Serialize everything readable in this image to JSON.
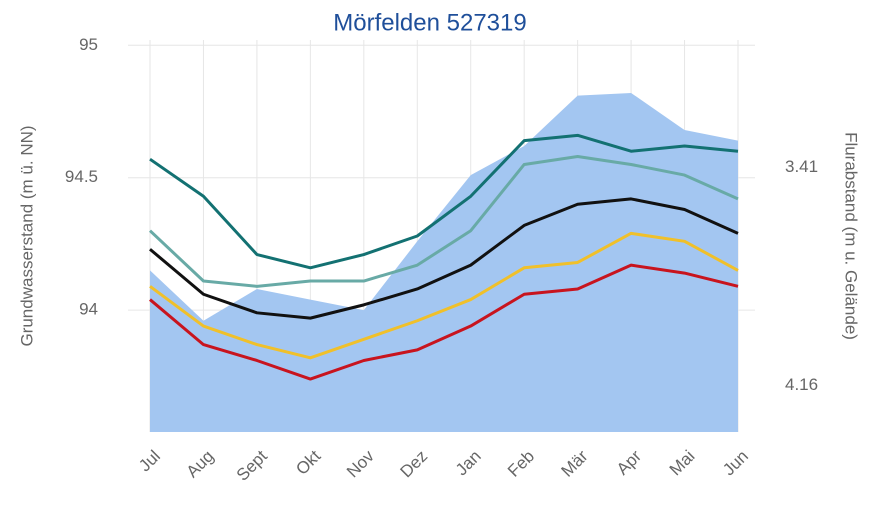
{
  "chart_data": {
    "type": "line",
    "title": "Mörfelden 527319",
    "y_label": "Grundwasserstand (m ü. NN)",
    "y2_label": "Flurabstand (m u. Gelände)",
    "categories": [
      "Jul",
      "Aug",
      "Sept",
      "Okt",
      "Nov",
      "Dez",
      "Jan",
      "Feb",
      "Mär",
      "Apr",
      "Mai",
      "Jun"
    ],
    "ylim": [
      93.54,
      95.02
    ],
    "yticks": [
      94,
      94.5,
      95
    ],
    "y2lim": [
      4.32,
      2.97
    ],
    "y2ticks": [
      3.41,
      4.16
    ],
    "grid": true,
    "series": [
      {
        "kind": "area",
        "color": "#a3c6f1",
        "values": [
          94.15,
          93.96,
          94.08,
          94.04,
          94.0,
          94.26,
          94.51,
          94.62,
          94.81,
          94.82,
          94.68,
          94.64
        ]
      },
      {
        "color": "#137172",
        "values": [
          94.57,
          94.43,
          94.21,
          94.16,
          94.21,
          94.28,
          94.43,
          94.64,
          94.66,
          94.6,
          94.62,
          94.6
        ]
      },
      {
        "color": "#68aaa6",
        "values": [
          94.3,
          94.11,
          94.09,
          94.11,
          94.11,
          94.17,
          94.3,
          94.55,
          94.58,
          94.55,
          94.51,
          94.42
        ]
      },
      {
        "color": "#111111",
        "values": [
          94.23,
          94.06,
          93.99,
          93.97,
          94.02,
          94.08,
          94.17,
          94.32,
          94.4,
          94.42,
          94.38,
          94.29
        ]
      },
      {
        "color": "#f0c02a",
        "values": [
          94.09,
          93.94,
          93.87,
          93.82,
          93.89,
          93.96,
          94.04,
          94.16,
          94.18,
          94.29,
          94.26,
          94.15
        ]
      },
      {
        "color": "#c8141e",
        "values": [
          94.04,
          93.87,
          93.81,
          93.74,
          93.81,
          93.85,
          93.94,
          94.06,
          94.08,
          94.17,
          94.14,
          94.09
        ]
      }
    ]
  }
}
